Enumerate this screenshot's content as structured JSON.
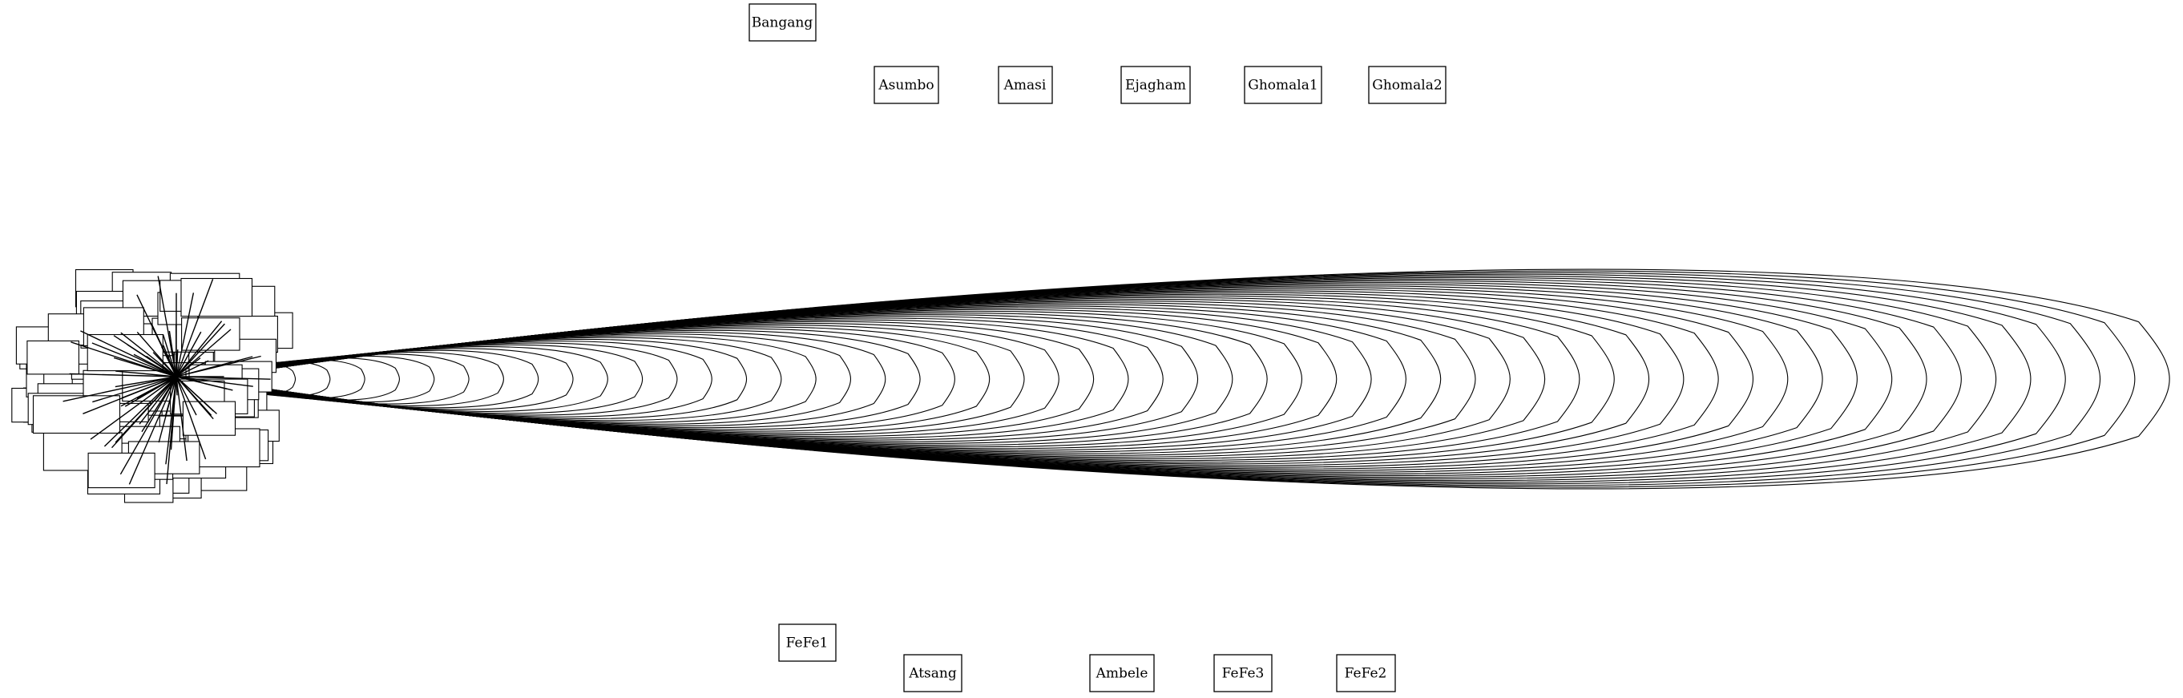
{
  "graph": {
    "layout": "force-directed node graph with dense central cluster and self-loop fan",
    "stroke_color": "#000000",
    "background": "#ffffff",
    "outer_nodes": [
      "Bangang",
      "Asumbo",
      "Amasi",
      "Ejagham",
      "Ghomala1",
      "Ghomala2",
      "FeFe1",
      "Atsang",
      "Ambele",
      "FeFe3",
      "FeFe2"
    ],
    "cluster_note": "dense overlapping cluster of many nodes; individual labels illegible",
    "loop_count": 60
  }
}
